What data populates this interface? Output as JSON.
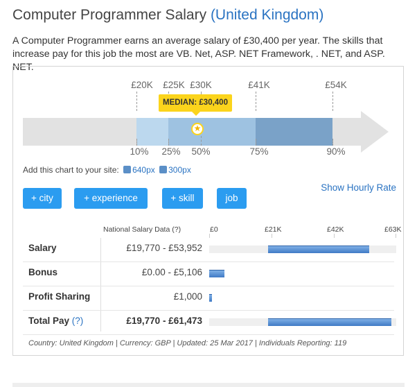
{
  "header": {
    "title": "Computer Programmer Salary",
    "location": "(United Kingdom)",
    "intro": "A Computer Programmer earns an average salary of £30,400 per year. The skills that increase pay for this job the most are VB. Net, ASP. NET Framework, . NET, and ASP. NET."
  },
  "range_chart": {
    "top_labels": [
      "£20K",
      "£25K",
      "£30K",
      "£41K",
      "£54K"
    ],
    "bottom_labels": [
      "10%",
      "25%",
      "50%",
      "75%",
      "90%"
    ],
    "median_label": "MEDIAN: £30,400",
    "colors": {
      "arrow": "#e2e2e2",
      "band_outer": "#bcd8ee",
      "band_inner": "#9ec2e1",
      "band_upper": "#7aa2c8",
      "median": "#fbd41c"
    }
  },
  "add_chart": {
    "text": "Add this chart to your site:",
    "link_640": "640px",
    "link_300": "300px"
  },
  "filters": {
    "city": "+ city",
    "experience": "+ experience",
    "skill": "+ skill",
    "job": "job"
  },
  "hourly_link": "Show Hourly Rate",
  "table": {
    "header_label": "National Salary Data",
    "header_help": "(?)",
    "axis_labels": [
      "£0",
      "£21K",
      "£42K",
      "£63K"
    ],
    "axis_max": 63000,
    "rows": [
      {
        "label": "Salary",
        "value": "£19,770 - £53,952",
        "min": 19770,
        "max": 53952
      },
      {
        "label": "Bonus",
        "value": "£0.00 - £5,106",
        "min": 0,
        "max": 5106
      },
      {
        "label": "Profit Sharing",
        "value": "£1,000",
        "min": 0,
        "max": 1000
      },
      {
        "label": "Total Pay",
        "help": "(?)",
        "value": "£19,770 - £61,473",
        "min": 19770,
        "max": 61473
      }
    ]
  },
  "footer": "Country: United Kingdom | Currency: GBP | Updated: 25 Mar 2017 | Individuals Reporting: 119"
}
